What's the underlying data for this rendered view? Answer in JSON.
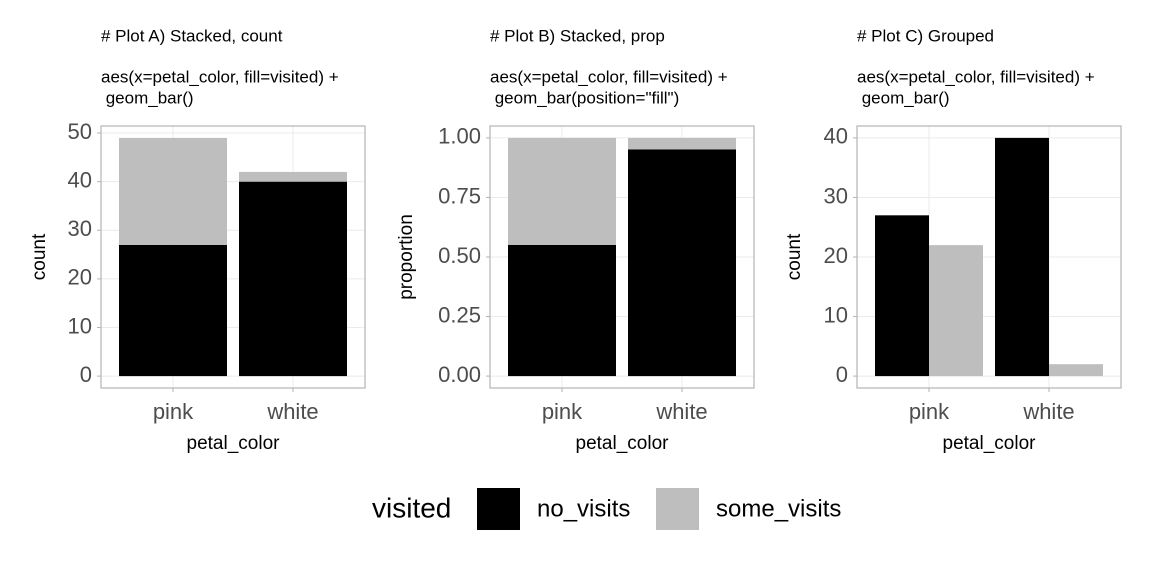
{
  "chart_data": [
    {
      "type": "bar",
      "position": "stack",
      "title": "# Plot A) Stacked, count",
      "subtitle": [
        "aes(x=petal_color, fill=visited) +",
        " geom_bar()"
      ],
      "xlabel": "petal_color",
      "ylabel": "count",
      "categories": [
        "pink",
        "white"
      ],
      "series": [
        {
          "name": "no_visits",
          "color": "#000000",
          "values": [
            27,
            40
          ]
        },
        {
          "name": "some_visits",
          "color": "#bebebe",
          "values": [
            22,
            2
          ]
        }
      ],
      "ylim": [
        -2.45,
        51.45
      ],
      "yticks": [
        0,
        10,
        20,
        30,
        40,
        50
      ],
      "grid": true
    },
    {
      "type": "bar",
      "position": "fill",
      "title": "# Plot B) Stacked, prop",
      "subtitle": [
        "aes(x=petal_color, fill=visited) +",
        " geom_bar(position=\"fill\")"
      ],
      "xlabel": "petal_color",
      "ylabel": "proportion",
      "categories": [
        "pink",
        "white"
      ],
      "series": [
        {
          "name": "no_visits",
          "color": "#000000",
          "values": [
            0.551,
            0.952
          ]
        },
        {
          "name": "some_visits",
          "color": "#bebebe",
          "values": [
            0.449,
            0.048
          ]
        }
      ],
      "ylim": [
        -0.05,
        1.05
      ],
      "yticks": [
        {
          "value": 0,
          "label": "0.00"
        },
        {
          "value": 0.25,
          "label": "0.25"
        },
        {
          "value": 0.5,
          "label": "0.50"
        },
        {
          "value": 0.75,
          "label": "0.75"
        },
        {
          "value": 1,
          "label": "1.00"
        }
      ],
      "grid": true
    },
    {
      "type": "bar",
      "position": "dodge",
      "title": "# Plot C) Grouped",
      "subtitle": [
        "aes(x=petal_color, fill=visited) +",
        " geom_bar()"
      ],
      "xlabel": "petal_color",
      "ylabel": "count",
      "categories": [
        "pink",
        "white"
      ],
      "series": [
        {
          "name": "no_visits",
          "color": "#000000",
          "values": [
            27,
            40
          ]
        },
        {
          "name": "some_visits",
          "color": "#bebebe",
          "values": [
            22,
            2
          ]
        }
      ],
      "ylim": [
        -2,
        42
      ],
      "yticks": [
        0,
        10,
        20,
        30,
        40
      ],
      "grid": true
    }
  ],
  "legend": {
    "title": "visited"
  }
}
